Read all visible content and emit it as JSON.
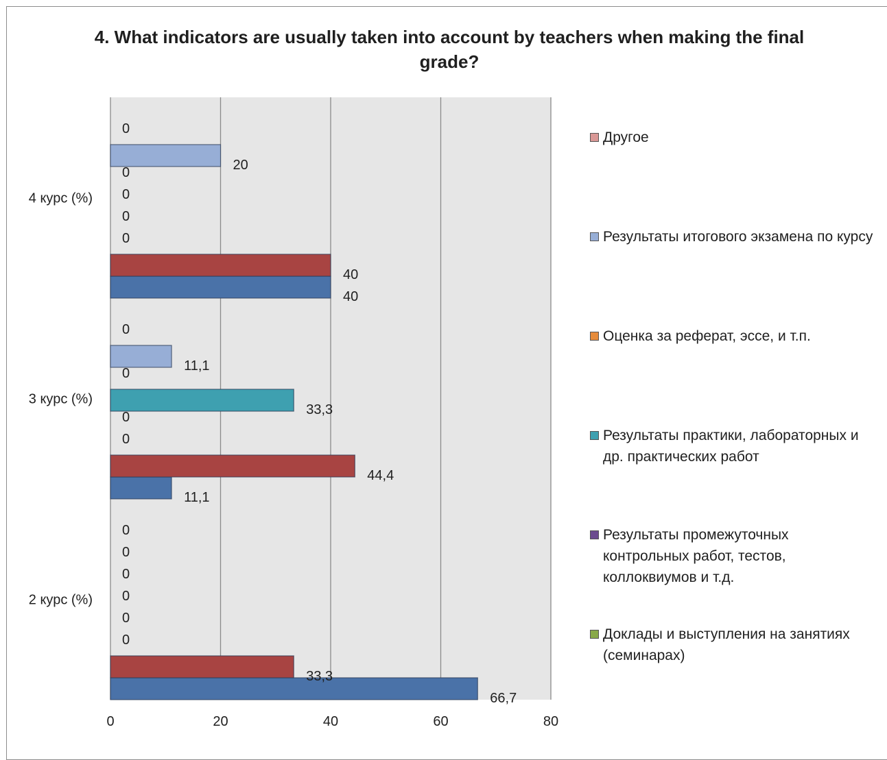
{
  "chart_data": {
    "type": "bar",
    "orientation": "horizontal",
    "title": "4. What indicators are usually taken into account by teachers when making the final grade?",
    "xlabel": "",
    "ylabel": "",
    "xlim": [
      0,
      80
    ],
    "x_ticks": [
      "0",
      "20",
      "40",
      "60",
      "80"
    ],
    "categories": [
      "2 курс (%)",
      "3 курс (%)",
      "4 курс (%)"
    ],
    "series": [
      {
        "name": "Доклады и выступления на занятиях (семинарах)",
        "color": "#4a72a8",
        "values": [
          66.7,
          11.1,
          40
        ],
        "labels": [
          "66,7",
          "11,1",
          "40"
        ]
      },
      {
        "name": "Результаты промежуточных контрольных работ, тестов, коллоквиумов и т.д.",
        "color": "#a84442",
        "values": [
          33.3,
          44.4,
          40
        ],
        "labels": [
          "33,3",
          "44,4",
          "40"
        ]
      },
      {
        "name": "Результаты практики, лабораторных и др. практических работ",
        "color": "#88a948",
        "values": [
          0,
          0,
          0
        ],
        "labels": [
          "0",
          "0",
          "0"
        ]
      },
      {
        "name": "Оценка за реферат, эссе, и т.п.",
        "color": "#6c4c8f",
        "values": [
          0,
          0,
          0
        ],
        "labels": [
          "0",
          "0",
          "0"
        ]
      },
      {
        "name": "Результаты итогового экзамена по курсу",
        "color": "#3ea0b0",
        "values": [
          0,
          33.3,
          0
        ],
        "labels": [
          "0",
          "33,3",
          "0"
        ]
      },
      {
        "name": "Другое",
        "color": "#e68b3a",
        "values": [
          0,
          0,
          0
        ],
        "labels": [
          "0",
          "0",
          "0"
        ]
      },
      {
        "name": "",
        "color": "#97aed6",
        "values": [
          0,
          11.1,
          20
        ],
        "labels": [
          "0",
          "11,1",
          "20"
        ]
      },
      {
        "name": "",
        "color": "#d99896",
        "values": [
          0,
          0,
          0
        ],
        "labels": [
          "0",
          "0",
          "0"
        ]
      }
    ],
    "legend": {
      "placement": "right",
      "items": [
        {
          "label": "Другое",
          "color": "#d99896"
        },
        {
          "label": "Результаты итогового экзамена по курсу",
          "color": "#97aed6"
        },
        {
          "label": "Оценка за реферат, эссе, и т.п.",
          "color": "#e68b3a"
        },
        {
          "label": "Результаты практики, лабораторных и др. практических работ",
          "color": "#3ea0b0"
        },
        {
          "label": "Результаты промежуточных контрольных работ, тестов, коллоквиумов и т.д.",
          "color": "#6c4c8f"
        },
        {
          "label": "Доклады и выступления на занятиях (семинарах)",
          "color": "#88a948"
        }
      ]
    },
    "grid": true,
    "plot_background": "#e6e6e6"
  }
}
